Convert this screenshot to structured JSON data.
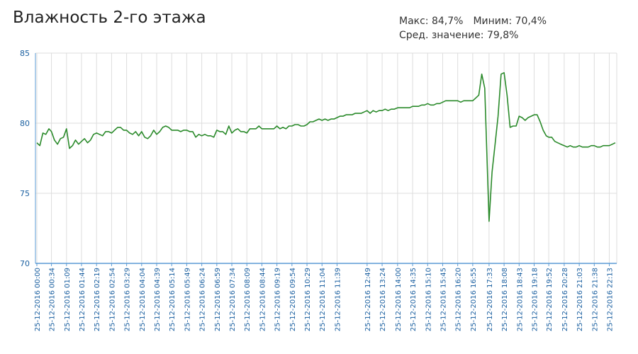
{
  "header": {
    "title": "Влажность 2-го этажа",
    "max_text": "Макс: 84,7%",
    "min_text": "Миним: 70,4%",
    "avg_text": "Сред. значение: 79,8%"
  },
  "colors": {
    "line": "#2a8a2a",
    "axis_text": "#1a5fa0",
    "grid": "#dddddd",
    "axis": "#5b9bd5"
  },
  "chart_data": {
    "type": "line",
    "title": "Влажность 2-го этажа",
    "xlabel": "",
    "ylabel": "",
    "ylim": [
      70,
      85
    ],
    "yticks": [
      70,
      75,
      80,
      85
    ],
    "grid": true,
    "x_tick_labels": [
      "25-12-2016 00:00",
      "25-12-2016 00:34",
      "25-12-2016 01:09",
      "25-12-2016 01:44",
      "25-12-2016 02:19",
      "25-12-2016 02:54",
      "25-12-2016 03:29",
      "25-12-2016 04:04",
      "25-12-2016 04:39",
      "25-12-2016 05:14",
      "25-12-2016 05:49",
      "25-12-2016 06:24",
      "25-12-2016 06:59",
      "25-12-2016 07:34",
      "25-12-2016 08:09",
      "25-12-2016 08:44",
      "25-12-2016 09:19",
      "25-12-2016 09:54",
      "25-12-2016 10:29",
      "25-12-2016 11:04",
      "25-12-2016 11:39",
      "25-12-2016 12:49",
      "25-12-2016 13:24",
      "25-12-2016 14:00",
      "25-12-2016 14:35",
      "25-12-2016 15:10",
      "25-12-2016 15:45",
      "25-12-2016 16:20",
      "25-12-2016 16:55",
      "25-12-2016 17:33",
      "25-12-2016 18:08",
      "25-12-2016 18:43",
      "25-12-2016 19:18",
      "25-12-2016 19:52",
      "25-12-2016 20:28",
      "25-12-2016 21:03",
      "25-12-2016 21:38",
      "25-12-2016 22:13"
    ],
    "series": [
      {
        "x": [
          "00:00",
          "00:07",
          "00:14",
          "00:21",
          "00:28",
          "00:34",
          "00:41",
          "00:48",
          "00:55",
          "01:02",
          "01:09",
          "01:16",
          "01:23",
          "01:30",
          "01:37",
          "01:44",
          "01:51",
          "01:58",
          "02:05",
          "02:12",
          "02:19",
          "02:26",
          "02:33",
          "02:40",
          "02:47",
          "02:54",
          "03:01",
          "03:08",
          "03:15",
          "03:22",
          "03:29",
          "03:36",
          "03:43",
          "03:50",
          "03:57",
          "04:04",
          "04:11",
          "04:18",
          "04:25",
          "04:32",
          "04:39",
          "04:46",
          "04:53",
          "05:00",
          "05:07",
          "05:14",
          "05:21",
          "05:28",
          "05:35",
          "05:42",
          "05:49",
          "05:56",
          "06:03",
          "06:10",
          "06:17",
          "06:24",
          "06:31",
          "06:38",
          "06:45",
          "06:52",
          "06:59",
          "07:06",
          "07:13",
          "07:20",
          "07:27",
          "07:34",
          "07:41",
          "07:48",
          "07:55",
          "08:02",
          "08:09",
          "08:16",
          "08:23",
          "08:30",
          "08:37",
          "08:44",
          "08:51",
          "08:58",
          "09:05",
          "09:12",
          "09:19",
          "09:26",
          "09:33",
          "09:40",
          "09:47",
          "09:54",
          "10:01",
          "10:08",
          "10:15",
          "10:22",
          "10:29",
          "10:36",
          "10:43",
          "10:50",
          "10:57",
          "11:04",
          "11:11",
          "11:18",
          "11:25",
          "11:32",
          "11:39",
          "11:46",
          "11:53",
          "12:00",
          "12:07",
          "12:14",
          "12:21",
          "12:28",
          "12:35",
          "12:42",
          "12:49",
          "12:56",
          "13:03",
          "13:10",
          "13:17",
          "13:24",
          "13:31",
          "13:38",
          "13:45",
          "13:52",
          "14:00",
          "14:07",
          "14:14",
          "14:21",
          "14:28",
          "14:35",
          "14:42",
          "14:49",
          "14:56",
          "15:03",
          "15:10",
          "15:17",
          "15:24",
          "15:31",
          "15:38",
          "15:45",
          "15:52",
          "15:59",
          "16:06",
          "16:13",
          "16:20",
          "16:27",
          "16:34",
          "16:41",
          "16:48",
          "16:55",
          "17:02",
          "17:09",
          "17:16",
          "17:23",
          "17:33",
          "17:40",
          "17:47",
          "17:54",
          "18:01",
          "18:08",
          "18:15",
          "18:22",
          "18:29",
          "18:36",
          "18:43",
          "18:50",
          "18:57",
          "19:04",
          "19:11",
          "19:18",
          "19:25",
          "19:32",
          "19:39",
          "19:46",
          "19:52",
          "19:59",
          "20:06",
          "20:13",
          "20:20",
          "20:28",
          "20:35",
          "20:42",
          "20:49",
          "20:56",
          "21:03",
          "21:10",
          "21:17",
          "21:24",
          "21:31",
          "21:38",
          "21:45",
          "21:52",
          "21:59",
          "22:06",
          "22:13",
          "22:20",
          "22:27"
        ],
        "values": [
          78.6,
          78.4,
          79.3,
          79.2,
          79.6,
          79.4,
          78.8,
          78.5,
          78.9,
          79.0,
          79.6,
          78.2,
          78.4,
          78.8,
          78.5,
          78.7,
          78.9,
          78.6,
          78.8,
          79.2,
          79.3,
          79.2,
          79.1,
          79.4,
          79.4,
          79.3,
          79.5,
          79.7,
          79.7,
          79.5,
          79.5,
          79.3,
          79.2,
          79.4,
          79.1,
          79.4,
          79.0,
          78.9,
          79.1,
          79.5,
          79.2,
          79.4,
          79.7,
          79.8,
          79.7,
          79.5,
          79.5,
          79.5,
          79.4,
          79.5,
          79.5,
          79.4,
          79.4,
          79.0,
          79.2,
          79.1,
          79.2,
          79.1,
          79.1,
          79.0,
          79.5,
          79.4,
          79.4,
          79.2,
          79.8,
          79.3,
          79.5,
          79.6,
          79.4,
          79.4,
          79.3,
          79.6,
          79.6,
          79.6,
          79.8,
          79.6,
          79.6,
          79.6,
          79.6,
          79.6,
          79.8,
          79.6,
          79.7,
          79.6,
          79.8,
          79.8,
          79.9,
          79.9,
          79.8,
          79.8,
          79.9,
          80.1,
          80.1,
          80.2,
          80.3,
          80.2,
          80.3,
          80.2,
          80.3,
          80.3,
          80.4,
          80.5,
          80.5,
          80.6,
          80.6,
          80.6,
          80.7,
          80.7,
          80.7,
          80.8,
          80.9,
          80.7,
          80.9,
          80.8,
          80.9,
          80.9,
          81.0,
          80.9,
          81.0,
          81.0,
          81.1,
          81.1,
          81.1,
          81.1,
          81.1,
          81.2,
          81.2,
          81.2,
          81.3,
          81.3,
          81.4,
          81.3,
          81.3,
          81.4,
          81.4,
          81.5,
          81.6,
          81.6,
          81.6,
          81.6,
          81.6,
          81.5,
          81.6,
          81.6,
          81.6,
          81.6,
          81.8,
          82.0,
          83.5,
          82.5,
          73.0,
          76.5,
          78.5,
          80.5,
          83.5,
          83.6,
          82.0,
          79.7,
          79.8,
          79.8,
          80.5,
          80.4,
          80.2,
          80.4,
          80.5,
          80.6,
          80.6,
          80.1,
          79.5,
          79.1,
          79.0,
          79.0,
          78.7,
          78.6,
          78.5,
          78.4,
          78.3,
          78.4,
          78.3,
          78.3,
          78.4,
          78.3,
          78.3,
          78.3,
          78.4,
          78.4,
          78.3,
          78.3,
          78.4,
          78.4,
          78.4,
          78.5,
          78.6
        ]
      }
    ]
  }
}
